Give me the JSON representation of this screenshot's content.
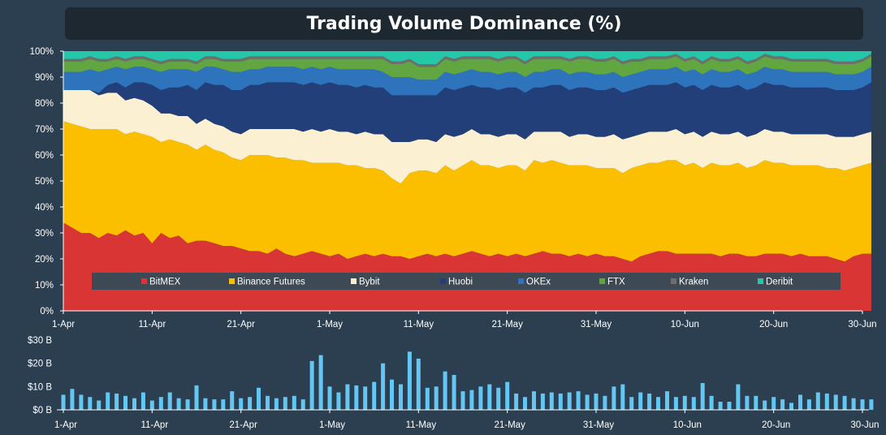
{
  "title": "Trading Volume Dominance (%)",
  "colors": {
    "background": "#2b3f50",
    "title_bg": "#1d2830",
    "legend_bg": "#3d4a55",
    "bar": "#64c6f2"
  },
  "chart_data": [
    {
      "type": "area",
      "stacked": true,
      "title": "Trading Volume Dominance (%)",
      "x_start": "2021-04-01",
      "x_end": "2021-06-30",
      "x_tick_labels": [
        "1-Apr",
        "11-Apr",
        "21-Apr",
        "1-May",
        "11-May",
        "21-May",
        "31-May",
        "10-Jun",
        "20-Jun",
        "30-Jun"
      ],
      "y_tick_labels": [
        "0%",
        "10%",
        "20%",
        "30%",
        "40%",
        "50%",
        "60%",
        "70%",
        "80%",
        "90%",
        "100%"
      ],
      "ylim": [
        0,
        100
      ],
      "grid": false,
      "legend_position": "bottom-inside",
      "series": [
        {
          "name": "BitMEX",
          "color": "#d93535",
          "values": [
            34,
            32,
            30,
            30,
            28,
            30,
            29,
            31,
            29,
            30,
            26,
            30,
            28,
            29,
            26,
            27,
            27,
            26,
            25,
            25,
            24,
            23,
            23,
            22,
            24,
            22,
            21,
            22,
            23,
            22,
            21,
            22,
            20,
            21,
            22,
            21,
            22,
            21,
            21,
            20,
            21,
            22,
            21,
            22,
            21,
            22,
            23,
            22,
            21,
            22,
            21,
            22,
            21,
            22,
            23,
            22,
            22,
            21,
            22,
            21,
            22,
            21,
            21,
            20,
            19,
            21,
            22,
            23,
            23,
            22,
            22,
            22,
            22,
            22,
            21,
            22,
            22,
            21,
            21,
            22,
            22,
            22,
            21,
            22,
            21,
            21,
            21,
            20,
            19,
            21,
            22,
            22
          ]
        },
        {
          "name": "Binance Futures",
          "color": "#fbbf00",
          "values": [
            39,
            40,
            41,
            40,
            42,
            40,
            41,
            37,
            40,
            38,
            41,
            35,
            38,
            36,
            38,
            35,
            37,
            36,
            36,
            34,
            34,
            37,
            37,
            38,
            35,
            37,
            37,
            36,
            34,
            35,
            36,
            35,
            36,
            35,
            33,
            34,
            32,
            30,
            28,
            33,
            33,
            32,
            32,
            34,
            33,
            34,
            35,
            34,
            35,
            33,
            35,
            34,
            33,
            36,
            34,
            36,
            35,
            35,
            34,
            35,
            33,
            34,
            34,
            33,
            36,
            35,
            35,
            34,
            35,
            36,
            34,
            35,
            33,
            35,
            35,
            34,
            35,
            34,
            35,
            36,
            35,
            35,
            35,
            34,
            35,
            35,
            34,
            35,
            35,
            34,
            34,
            35
          ]
        },
        {
          "name": "Bybit",
          "color": "#fbf0d2",
          "values": [
            12,
            13,
            14,
            15,
            13,
            14,
            14,
            13,
            13,
            13,
            12,
            11,
            10,
            10,
            11,
            10,
            10,
            10,
            10,
            10,
            10,
            10,
            10,
            10,
            11,
            11,
            12,
            11,
            13,
            12,
            13,
            12,
            13,
            12,
            14,
            13,
            14,
            14,
            16,
            12,
            12,
            12,
            12,
            12,
            13,
            12,
            12,
            12,
            12,
            12,
            12,
            12,
            12,
            11,
            12,
            11,
            12,
            11,
            12,
            12,
            12,
            12,
            13,
            13,
            12,
            12,
            12,
            12,
            11,
            12,
            12,
            12,
            12,
            12,
            12,
            12,
            12,
            12,
            12,
            12,
            12,
            12,
            12,
            12,
            12,
            12,
            13,
            12,
            13,
            12,
            12,
            12
          ]
        },
        {
          "name": "Huobi",
          "color": "#223f7a",
          "values": [
            0,
            0,
            0,
            0,
            1,
            3,
            4,
            5,
            6,
            7,
            8,
            9,
            10,
            11,
            12,
            13,
            14,
            15,
            16,
            16,
            17,
            17,
            17,
            18,
            18,
            18,
            18,
            18,
            18,
            18,
            18,
            18,
            18,
            18,
            18,
            18,
            18,
            18,
            18,
            18,
            17,
            17,
            18,
            18,
            18,
            18,
            17,
            18,
            18,
            18,
            18,
            18,
            18,
            17,
            17,
            18,
            18,
            18,
            18,
            18,
            18,
            18,
            18,
            18,
            18,
            18,
            18,
            18,
            18,
            18,
            18,
            18,
            18,
            18,
            18,
            18,
            18,
            18,
            18,
            18,
            18,
            18,
            18,
            18,
            18,
            18,
            18,
            18,
            18,
            18,
            18,
            19
          ]
        },
        {
          "name": "OKEx",
          "color": "#2e74bd",
          "values": [
            7,
            7,
            7,
            8,
            8,
            6,
            6,
            7,
            6,
            6,
            6,
            7,
            7,
            7,
            6,
            7,
            6,
            7,
            6,
            7,
            7,
            6,
            6,
            6,
            6,
            6,
            6,
            6,
            6,
            6,
            6,
            6,
            6,
            7,
            6,
            7,
            6,
            7,
            7,
            7,
            6,
            6,
            6,
            6,
            6,
            6,
            6,
            6,
            6,
            6,
            6,
            6,
            6,
            6,
            6,
            6,
            6,
            6,
            6,
            6,
            6,
            6,
            6,
            6,
            6,
            6,
            6,
            6,
            6,
            6,
            6,
            6,
            6,
            6,
            6,
            6,
            6,
            6,
            6,
            6,
            6,
            6,
            6,
            6,
            6,
            6,
            6,
            6,
            6,
            6,
            6,
            6
          ]
        },
        {
          "name": "FTX",
          "color": "#62a642",
          "values": [
            4,
            4,
            4,
            4,
            4,
            3,
            3,
            3,
            3,
            3,
            3,
            3,
            3,
            3,
            3,
            3,
            3,
            3,
            3,
            4,
            4,
            4,
            4,
            3,
            3,
            3,
            3,
            4,
            3,
            4,
            3,
            4,
            4,
            4,
            4,
            4,
            5,
            5,
            5,
            6,
            5,
            5,
            5,
            5,
            5,
            5,
            4,
            5,
            5,
            5,
            5,
            5,
            5,
            5,
            5,
            4,
            4,
            5,
            5,
            5,
            5,
            5,
            5,
            5,
            5,
            4,
            4,
            4,
            4,
            4,
            4,
            4,
            4,
            4,
            4,
            4,
            4,
            4,
            4,
            4,
            4,
            4,
            4,
            4,
            4,
            4,
            4,
            4,
            4,
            4,
            4,
            4
          ]
        },
        {
          "name": "Kraken",
          "color": "#6f6f6f",
          "values": [
            1,
            1,
            1,
            1,
            1,
            1,
            1,
            1,
            1,
            1,
            1,
            1,
            1,
            1,
            1,
            1,
            1,
            1,
            1,
            1,
            1,
            1,
            1,
            1,
            1,
            1,
            1,
            1,
            1,
            1,
            1,
            1,
            1,
            1,
            1,
            1,
            1,
            1,
            1,
            1,
            1,
            1,
            1,
            1,
            1,
            1,
            1,
            1,
            1,
            1,
            1,
            1,
            1,
            1,
            1,
            1,
            1,
            1,
            1,
            1,
            1,
            1,
            1,
            1,
            1,
            1,
            1,
            1,
            1,
            1,
            1,
            1,
            1,
            1,
            1,
            1,
            1,
            1,
            1,
            1,
            1,
            1,
            1,
            1,
            1,
            1,
            1,
            1,
            1,
            1,
            1,
            1
          ]
        },
        {
          "name": "Deribit",
          "color": "#24c8a8",
          "values": [
            3,
            3,
            3,
            2,
            3,
            3,
            2,
            3,
            2,
            2,
            3,
            4,
            3,
            3,
            3,
            4,
            2,
            2,
            3,
            3,
            3,
            2,
            2,
            2,
            2,
            2,
            2,
            2,
            2,
            2,
            2,
            2,
            2,
            2,
            2,
            2,
            2,
            4,
            4,
            3,
            4,
            3,
            3,
            2,
            3,
            2,
            2,
            2,
            2,
            3,
            2,
            2,
            3,
            2,
            2,
            2,
            2,
            3,
            2,
            2,
            3,
            2,
            3,
            4,
            3,
            3,
            2,
            2,
            2,
            2,
            3,
            2,
            4,
            2,
            3,
            3,
            2,
            4,
            3,
            2,
            2,
            2,
            3,
            3,
            3,
            3,
            3,
            4,
            4,
            4,
            3,
            3
          ]
        }
      ]
    },
    {
      "type": "bar",
      "title": "",
      "x_start": "2021-04-01",
      "x_end": "2021-06-30",
      "x_tick_labels": [
        "1-Apr",
        "11-Apr",
        "21-Apr",
        "1-May",
        "11-May",
        "21-May",
        "31-May",
        "10-Jun",
        "20-Jun",
        "30-Jun"
      ],
      "y_tick_labels": [
        "$0 B",
        "$10 B",
        "$20 B",
        "$30 B"
      ],
      "ylim": [
        0,
        30
      ],
      "unit": "USD billions",
      "grid": false,
      "color": "#64c6f2",
      "values": [
        6.5,
        9,
        6.5,
        5.5,
        4,
        7.5,
        7,
        6,
        5,
        7.5,
        4,
        5.5,
        7.5,
        5,
        4.5,
        10.5,
        5,
        4.5,
        4.5,
        8,
        5,
        5.5,
        9.5,
        6,
        5,
        5.5,
        6,
        4.5,
        21,
        23.5,
        10,
        7.5,
        11,
        10.5,
        10,
        12,
        20,
        13,
        11,
        25,
        22,
        9.5,
        10,
        16.5,
        15,
        8,
        8.5,
        10,
        11,
        9.5,
        12,
        7,
        5.5,
        8,
        7,
        7.5,
        7,
        7.5,
        8,
        6.5,
        7,
        6,
        10,
        11,
        5.5,
        7.5,
        7,
        5.5,
        8,
        5.5,
        6,
        5.5,
        11.5,
        6,
        3.5,
        3.5,
        11,
        6,
        6,
        4,
        5.5,
        4.5,
        3,
        6.5,
        4.5,
        7.5,
        7,
        6.5,
        6,
        5,
        4.5,
        4.5
      ]
    }
  ]
}
